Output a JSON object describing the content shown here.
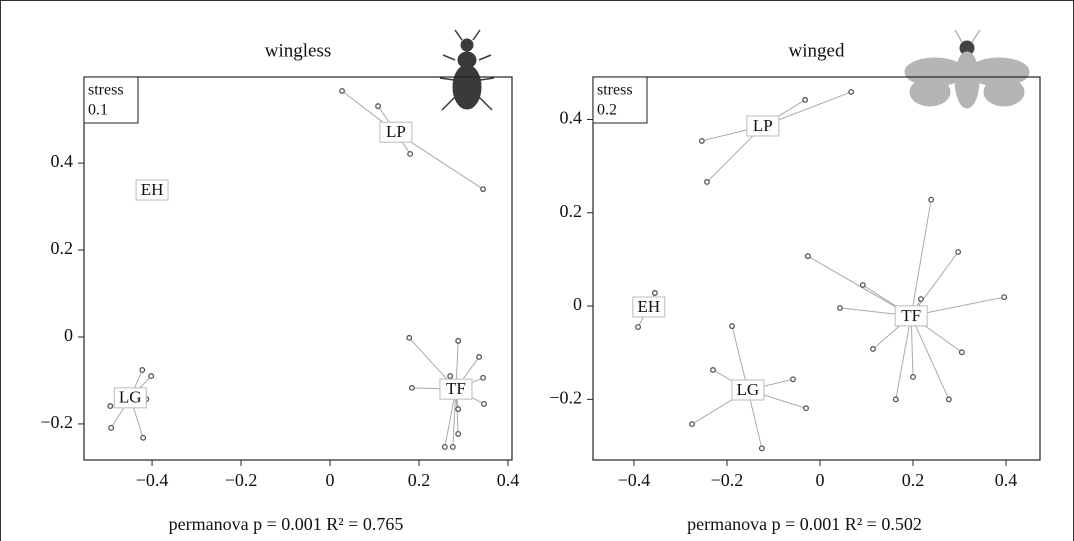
{
  "chart_data": [
    {
      "type": "scatter",
      "title": "wingless",
      "stress_label": "stress",
      "stress": 0.1,
      "caption": "permanova p = 0.001 R² = 0.765",
      "xlim": [
        -0.553,
        0.409
      ],
      "ylim": [
        -0.283,
        0.598
      ],
      "xticks": [
        {
          "value": -0.4,
          "label": "−0.4"
        },
        {
          "value": -0.2,
          "label": "−0.2"
        },
        0,
        0.2,
        0.4
      ],
      "yticks": [
        {
          "value": -0.2,
          "label": "−0.2"
        },
        0,
        0.2,
        0.4
      ],
      "color": "#555555",
      "series": [
        {
          "name": "LP",
          "x": 0.148,
          "y": 0.471,
          "points_x": [
            0.027,
            0.108,
            0.18,
            0.344
          ],
          "points_y": [
            0.566,
            0.531,
            0.421,
            0.34
          ]
        },
        {
          "name": "EH",
          "x": -0.4,
          "y": 0.338,
          "points_x": [],
          "points_y": []
        },
        {
          "name": "LG",
          "x": -0.449,
          "y": -0.14,
          "points_x": [
            -0.494,
            -0.492,
            -0.422,
            -0.402,
            -0.413,
            -0.42
          ],
          "points_y": [
            -0.159,
            -0.209,
            -0.076,
            -0.09,
            -0.143,
            -0.232
          ]
        },
        {
          "name": "TF",
          "x": 0.283,
          "y": -0.12,
          "points_x": [
            0.178,
            0.288,
            0.335,
            0.344,
            0.346,
            0.288,
            0.288,
            0.276,
            0.258,
            0.184,
            0.27
          ],
          "points_y": [
            -0.002,
            -0.009,
            -0.046,
            -0.094,
            -0.154,
            -0.166,
            -0.223,
            -0.253,
            -0.253,
            -0.117,
            -0.09
          ]
        }
      ]
    },
    {
      "type": "scatter",
      "title": "winged",
      "stress_label": "stress",
      "stress": 0.2,
      "caption": "permanova p = 0.001 R² = 0.502",
      "xlim": [
        -0.488,
        0.473
      ],
      "ylim": [
        -0.33,
        0.491
      ],
      "xticks": [
        {
          "value": -0.4,
          "label": "−0.4"
        },
        {
          "value": -0.2,
          "label": "−0.2"
        },
        0,
        0.2,
        0.4
      ],
      "yticks": [
        {
          "value": -0.2,
          "label": "−0.2"
        },
        0,
        0.2,
        0.4
      ],
      "color": "#555555",
      "series": [
        {
          "name": "LP",
          "x": -0.123,
          "y": 0.386,
          "points_x": [
            -0.254,
            -0.243,
            -0.032,
            0.067
          ],
          "points_y": [
            0.354,
            0.266,
            0.442,
            0.459
          ]
        },
        {
          "name": "EH",
          "x": -0.368,
          "y": -0.002,
          "points_x": [
            -0.355,
            -0.391
          ],
          "points_y": [
            0.028,
            -0.045
          ]
        },
        {
          "name": "LG",
          "x": -0.155,
          "y": -0.18,
          "points_x": [
            -0.189,
            -0.23,
            -0.275,
            -0.125,
            -0.03,
            -0.058
          ],
          "points_y": [
            -0.043,
            -0.137,
            -0.253,
            -0.305,
            -0.219,
            -0.157
          ]
        },
        {
          "name": "TF",
          "x": 0.196,
          "y": -0.021,
          "points_x": [
            0.239,
            0.297,
            0.396,
            0.217,
            0.092,
            -0.026,
            0.043,
            0.114,
            0.2,
            0.163,
            0.277,
            0.305
          ],
          "points_y": [
            0.228,
            0.116,
            0.019,
            0.015,
            0.045,
            0.107,
            -0.004,
            -0.092,
            -0.152,
            -0.2,
            -0.2,
            -0.099
          ]
        }
      ]
    }
  ]
}
